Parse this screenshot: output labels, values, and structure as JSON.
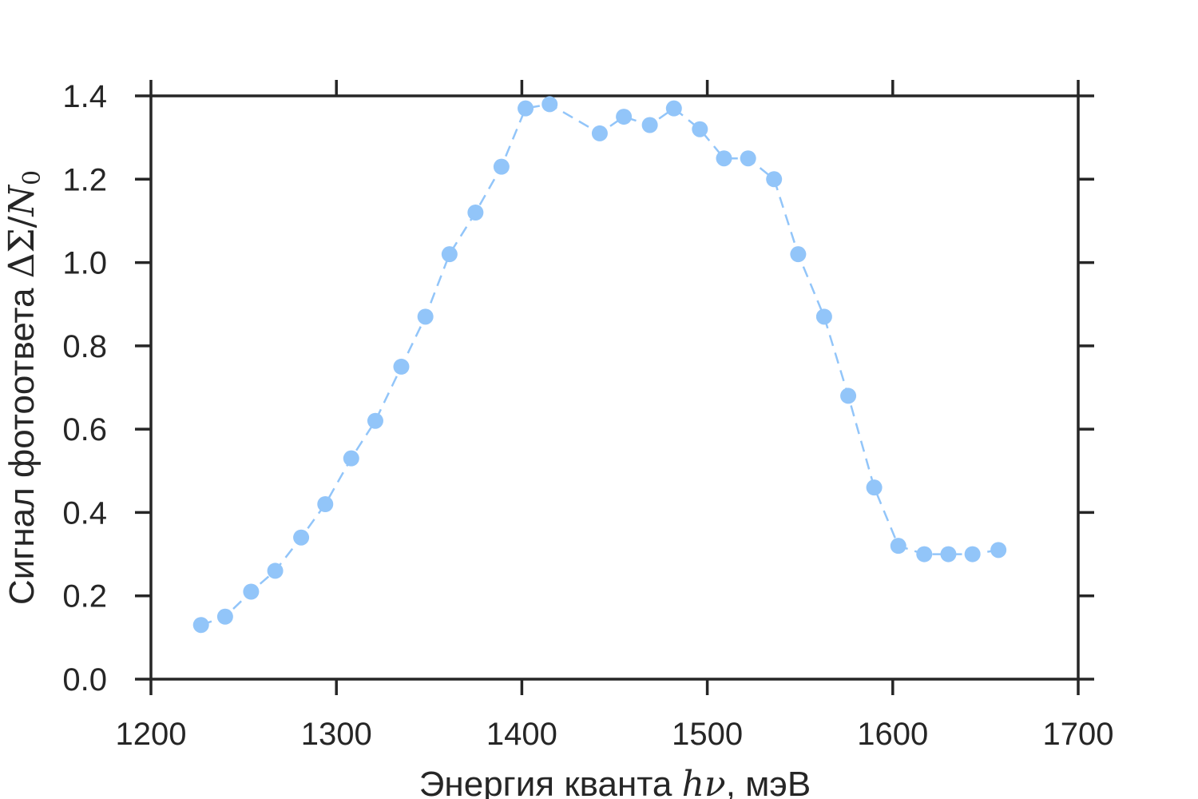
{
  "chart_data": {
    "type": "line",
    "title": "",
    "xlabel_text": "Энергия кванта ",
    "xlabel_math": "hν",
    "xlabel_unit": ", мэВ",
    "ylabel_text": "Сигнал фотоответа ",
    "ylabel_math_delta": "ΔΣ",
    "ylabel_math_slash": "/",
    "ylabel_math_n": "N",
    "ylabel_math_sub": "0",
    "xlim": [
      1200,
      1700
    ],
    "ylim": [
      0.0,
      1.4
    ],
    "xticks": [
      1200,
      1300,
      1400,
      1500,
      1600,
      1700
    ],
    "xtick_labels": [
      "1200",
      "1300",
      "1400",
      "1500",
      "1600",
      "1700"
    ],
    "yticks": [
      0.0,
      0.2,
      0.4,
      0.6,
      0.8,
      1.0,
      1.2,
      1.4
    ],
    "ytick_labels": [
      "0.0",
      "0.2",
      "0.4",
      "0.6",
      "0.8",
      "1.0",
      "1.2",
      "1.4"
    ],
    "grid": false,
    "line_style": "dashed",
    "color": "#92c5f9",
    "series": [
      {
        "x": [
          1227,
          1240,
          1254,
          1267,
          1281,
          1294,
          1308,
          1321,
          1335,
          1348,
          1361,
          1375,
          1389,
          1402,
          1415,
          1442,
          1455,
          1469,
          1482,
          1496,
          1509,
          1522,
          1536,
          1549,
          1563,
          1576,
          1590,
          1603,
          1617,
          1630,
          1643,
          1657
        ],
        "y": [
          0.13,
          0.15,
          0.21,
          0.26,
          0.34,
          0.42,
          0.53,
          0.62,
          0.75,
          0.87,
          1.02,
          1.12,
          1.23,
          1.37,
          1.38,
          1.31,
          1.35,
          1.33,
          1.37,
          1.32,
          1.25,
          1.25,
          1.2,
          1.02,
          0.87,
          0.68,
          0.46,
          0.32,
          0.3,
          0.3,
          0.3,
          0.31
        ]
      }
    ]
  }
}
